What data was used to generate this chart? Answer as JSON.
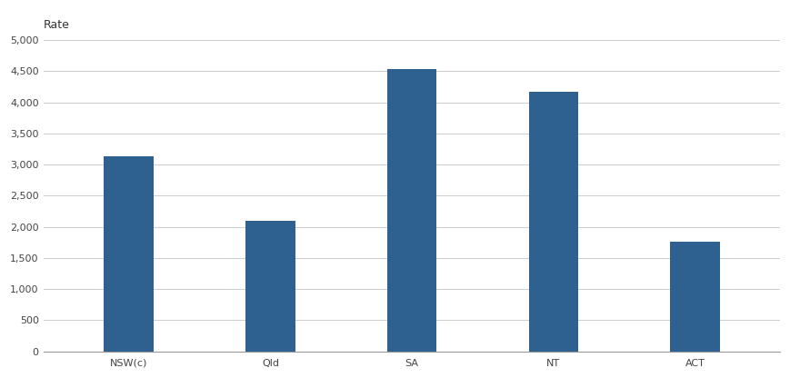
{
  "categories": [
    "NSW(c)",
    "Qld",
    "SA",
    "NT",
    "ACT"
  ],
  "values": [
    3140,
    2100,
    4540,
    4170,
    1760
  ],
  "bar_color": "#2E6190",
  "ylabel": "Rate",
  "ylim": [
    0,
    5000
  ],
  "yticks": [
    0,
    500,
    1000,
    1500,
    2000,
    2500,
    3000,
    3500,
    4000,
    4500,
    5000
  ],
  "background_color": "#ffffff",
  "ylabel_fontsize": 9,
  "tick_fontsize": 8,
  "bar_width": 0.35
}
